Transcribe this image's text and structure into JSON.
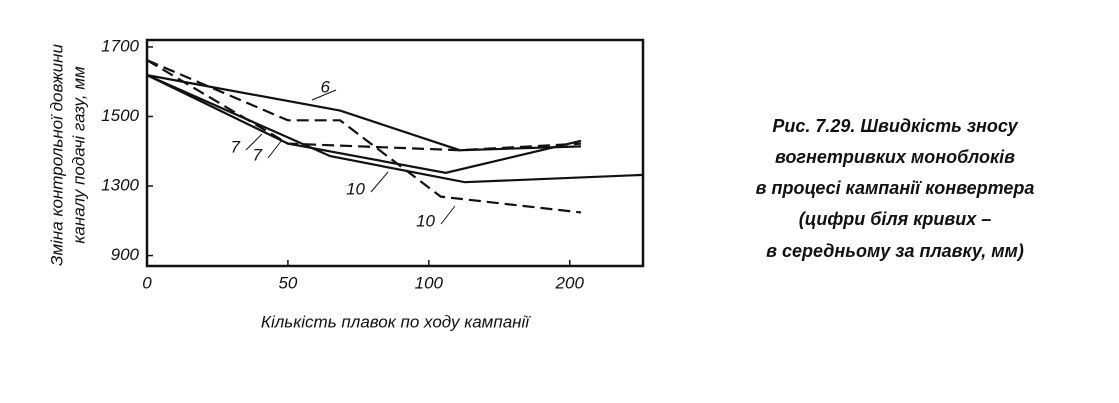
{
  "chart_data": {
    "type": "line",
    "y_label": [
      "Зміна контрольної довжини",
      "каналу подачі газу, мм"
    ],
    "x_label": "Кількість плавок по ходу кампанії",
    "caption": [
      "Рис. 7.29. Швидкість зносу",
      "вогнетривких моноблоків",
      "в процесі кампанії конвертера",
      "(цифри біля кривих –",
      "в середньому за плавку, мм)"
    ],
    "xlim": [
      0,
      252
    ],
    "xticks": [
      0,
      50,
      100,
      200
    ],
    "ylim": [
      840,
      1720
    ],
    "yticks": [
      900,
      1300,
      1500,
      1700
    ],
    "series": [
      {
        "name": "6",
        "color": "#111111",
        "dash": false,
        "x": [
          0,
          68.5,
          122,
          208
        ],
        "values": [
          1619,
          1517,
          1403,
          1414
        ]
      },
      {
        "name": "7",
        "color": "#111111",
        "dash": false,
        "x": [
          0,
          50,
          112,
          208
        ],
        "values": [
          1619,
          1422,
          1338,
          1430
        ]
      },
      {
        "name": "10",
        "color": "#111111",
        "dash": false,
        "x": [
          0,
          65,
          125.5,
          252
        ],
        "values": [
          1619,
          1386,
          1311,
          1332
        ]
      },
      {
        "name": "10",
        "color": "#111111",
        "dash": true,
        "x": [
          0,
          50,
          68.5,
          108.5,
          208
        ],
        "values": [
          1662,
          1489,
          1489,
          1239,
          1148
        ]
      },
      {
        "name": "7",
        "color": "#111111",
        "dash": true,
        "x": [
          0,
          50,
          122,
          208
        ],
        "values": [
          1662,
          1422,
          1403,
          1422
        ]
      }
    ]
  }
}
